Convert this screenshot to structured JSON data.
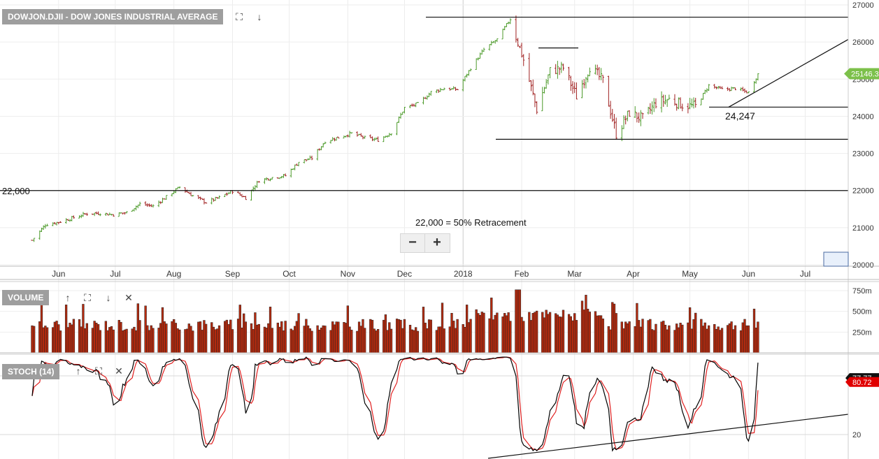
{
  "panels": {
    "price_label": "DOWJON.DJII - DOW JONES INDUSTRIAL AVERAGE",
    "volume_label": "VOLUME",
    "stoch_label": "STOCH (14)"
  },
  "icons": {
    "expand": "expand-icon",
    "download": "arrow-down-icon",
    "move_up": "arrow-up-icon",
    "close": "close-icon"
  },
  "zoom": {
    "out_label": "−",
    "in_label": "+"
  },
  "annotations": {
    "level_22000": "22,000",
    "retracement": "22,000 = 50% Retracement",
    "level_24247": "24,247"
  },
  "chart_data": [
    {
      "type": "candlestick",
      "x_ticks": [
        "Jun",
        "Jul",
        "Aug",
        "Sep",
        "Oct",
        "Nov",
        "Dec",
        "2018",
        "Feb",
        "Mar",
        "Apr",
        "May",
        "Jun",
        "Jul"
      ],
      "y_ticks": [
        20000,
        21000,
        22000,
        23000,
        24000,
        25000,
        26000,
        27000
      ],
      "ylim": [
        20000,
        27200
      ],
      "last_price": "25146.39",
      "up_color": "#4c9a2a",
      "down_color": "#a02020",
      "close_path": [
        [
          "2017-05-18",
          20660
        ],
        [
          "2017-05-25",
          21080
        ],
        [
          "2017-06-01",
          21150
        ],
        [
          "2017-06-09",
          21270
        ],
        [
          "2017-06-16",
          21380
        ],
        [
          "2017-06-23",
          21390
        ],
        [
          "2017-06-30",
          21350
        ],
        [
          "2017-07-07",
          21410
        ],
        [
          "2017-07-14",
          21640
        ],
        [
          "2017-07-21",
          21580
        ],
        [
          "2017-07-28",
          21830
        ],
        [
          "2017-08-04",
          22090
        ],
        [
          "2017-08-11",
          21860
        ],
        [
          "2017-08-18",
          21680
        ],
        [
          "2017-08-25",
          21810
        ],
        [
          "2017-09-01",
          21990
        ],
        [
          "2017-09-08",
          21800
        ],
        [
          "2017-09-15",
          22270
        ],
        [
          "2017-09-22",
          22350
        ],
        [
          "2017-09-29",
          22400
        ],
        [
          "2017-10-06",
          22770
        ],
        [
          "2017-10-13",
          22870
        ],
        [
          "2017-10-20",
          23330
        ],
        [
          "2017-10-27",
          23430
        ],
        [
          "2017-11-03",
          23540
        ],
        [
          "2017-11-10",
          23420
        ],
        [
          "2017-11-17",
          23360
        ],
        [
          "2017-11-24",
          23560
        ],
        [
          "2017-12-01",
          24230
        ],
        [
          "2017-12-08",
          24330
        ],
        [
          "2017-12-15",
          24650
        ],
        [
          "2017-12-22",
          24750
        ],
        [
          "2017-12-29",
          24720
        ],
        [
          "2018-01-05",
          25300
        ],
        [
          "2018-01-12",
          25800
        ],
        [
          "2018-01-19",
          26070
        ],
        [
          "2018-01-26",
          26620
        ],
        [
          "2018-02-02",
          25520
        ],
        [
          "2018-02-09",
          24190
        ],
        [
          "2018-02-16",
          25220
        ],
        [
          "2018-02-23",
          25310
        ],
        [
          "2018-03-02",
          24540
        ],
        [
          "2018-03-09",
          25340
        ],
        [
          "2018-03-16",
          24950
        ],
        [
          "2018-03-23",
          23530
        ],
        [
          "2018-03-30",
          24100
        ],
        [
          "2018-04-06",
          23930
        ],
        [
          "2018-04-13",
          24360
        ],
        [
          "2018-04-20",
          24460
        ],
        [
          "2018-04-27",
          24310
        ],
        [
          "2018-05-04",
          24260
        ],
        [
          "2018-05-11",
          24830
        ],
        [
          "2018-05-18",
          24720
        ],
        [
          "2018-05-25",
          24750
        ],
        [
          "2018-06-01",
          24640
        ],
        [
          "2018-06-06",
          25146
        ]
      ]
    },
    {
      "type": "bar",
      "title": "VOLUME",
      "y_ticks": [
        "250m",
        "500m",
        "750m"
      ],
      "ylim": [
        0,
        820
      ],
      "color": "#b52a0e"
    },
    {
      "type": "line",
      "title": "STOCH (14)",
      "y_ticks": [
        20,
        80
      ],
      "ylim": [
        0,
        100
      ],
      "series": [
        {
          "value_label": "77.77",
          "color": "#000000",
          "badge_color": "#111111"
        },
        {
          "value_label": "80.72",
          "color": "#e02020",
          "badge_color": "#e00000"
        }
      ]
    }
  ]
}
